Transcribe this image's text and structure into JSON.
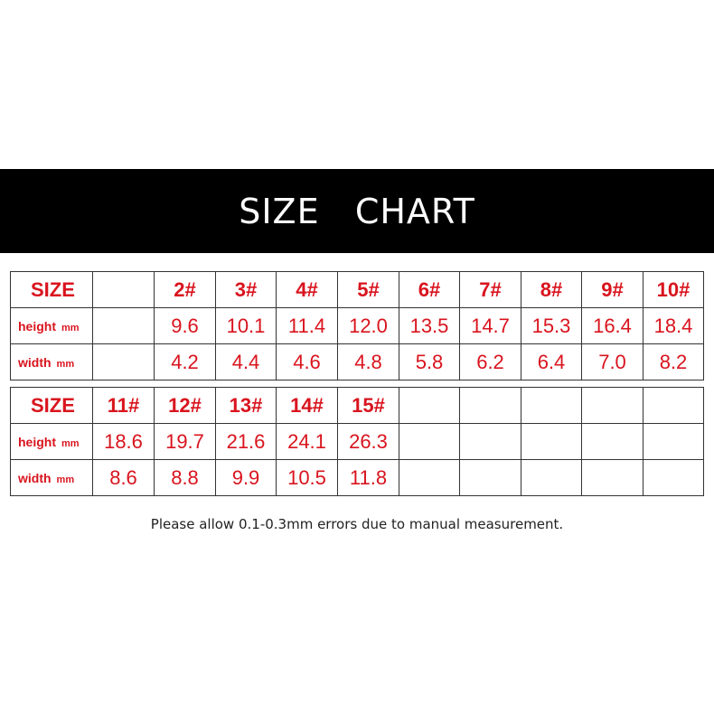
{
  "title": "SIZE   CHART",
  "tables": [
    {
      "size_label": "SIZE",
      "sizes": [
        "",
        "2#",
        "3#",
        "4#",
        "5#",
        "6#",
        "7#",
        "8#",
        "9#",
        "10#"
      ],
      "height_label": "height",
      "width_label": "width",
      "unit": "mm",
      "height": [
        "",
        "9.6",
        "10.1",
        "11.4",
        "12.0",
        "13.5",
        "14.7",
        "15.3",
        "16.4",
        "18.4"
      ],
      "width": [
        "",
        "4.2",
        "4.4",
        "4.6",
        "4.8",
        "5.8",
        "6.2",
        "6.4",
        "7.0",
        "8.2"
      ]
    },
    {
      "size_label": "SIZE",
      "sizes": [
        "11#",
        "12#",
        "13#",
        "14#",
        "15#",
        "",
        "",
        "",
        "",
        ""
      ],
      "height_label": "height",
      "width_label": "width",
      "unit": "mm",
      "height": [
        "18.6",
        "19.7",
        "21.6",
        "24.1",
        "26.3",
        "",
        "",
        "",
        "",
        ""
      ],
      "width": [
        "8.6",
        "8.8",
        "9.9",
        "10.5",
        "11.8",
        "",
        "",
        "",
        "",
        ""
      ]
    }
  ],
  "note": "Please allow 0.1-0.3mm errors due to manual measurement.",
  "colors": {
    "accent": "#d9141e",
    "banner": "#000000"
  }
}
